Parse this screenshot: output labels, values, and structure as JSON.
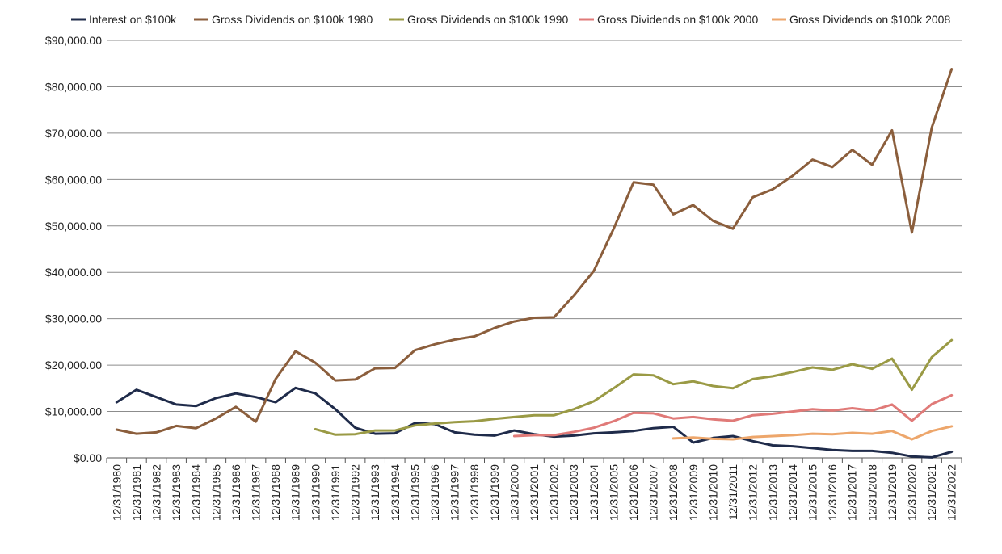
{
  "chart_data": {
    "type": "line",
    "title": "",
    "xlabel": "",
    "ylabel": "",
    "ylim": [
      0,
      90000
    ],
    "y_ticks": [
      "$0.00",
      "$10,000.00",
      "$20,000.00",
      "$30,000.00",
      "$40,000.00",
      "$50,000.00",
      "$60,000.00",
      "$70,000.00",
      "$80,000.00",
      "$90,000.00"
    ],
    "grid": "horizontal",
    "legend_position": "top",
    "categories": [
      "12/31/1980",
      "12/31/1981",
      "12/31/1982",
      "12/31/1983",
      "12/31/1984",
      "12/31/1985",
      "12/31/1986",
      "12/31/1987",
      "12/31/1988",
      "12/31/1989",
      "12/31/1990",
      "12/31/1991",
      "12/31/1992",
      "12/31/1993",
      "12/31/1994",
      "12/31/1995",
      "12/31/1996",
      "12/31/1997",
      "12/31/1998",
      "12/31/1999",
      "12/31/2000",
      "12/31/2001",
      "12/31/2002",
      "12/31/2003",
      "12/31/2004",
      "12/31/2005",
      "12/31/2006",
      "12/31/2007",
      "12/31/2008",
      "12/31/2009",
      "12/31/2010",
      "12/31/2011",
      "12/31/2012",
      "12/31/2013",
      "12/31/2014",
      "12/31/2015",
      "12/31/2016",
      "12/31/2017",
      "12/31/2018",
      "12/31/2019",
      "12/31/2020",
      "12/31/2021",
      "12/31/2022"
    ],
    "series": [
      {
        "name": "Interest on $100k",
        "color": "#1f2b4a",
        "values": [
          12000,
          14700,
          13100,
          11500,
          11200,
          12900,
          13900,
          13100,
          12000,
          15100,
          13900,
          10500,
          6500,
          5200,
          5300,
          7500,
          7300,
          5500,
          5000,
          4800,
          5900,
          5100,
          4600,
          4800,
          5300,
          5500,
          5800,
          6400,
          6700,
          3300,
          4300,
          4700,
          3600,
          2700,
          2500,
          2100,
          1700,
          1500,
          1500,
          1100,
          300,
          100,
          1300
        ]
      },
      {
        "name": "Gross Dividends on $100k 1980",
        "color": "#8b5e3c",
        "values": [
          6100,
          5200,
          5500,
          6900,
          6400,
          8500,
          11000,
          7800,
          17000,
          23000,
          20500,
          16700,
          16900,
          19300,
          19400,
          23200,
          24500,
          25500,
          26200,
          28000,
          29400,
          30200,
          30300,
          35000,
          40300,
          49400,
          59400,
          58900,
          52500,
          54500,
          51100,
          49400,
          56200,
          57900,
          60800,
          64300,
          62700,
          66400,
          63200,
          70600,
          48600,
          71200,
          83800
        ]
      },
      {
        "name": "Gross Dividends on $100k 1990",
        "color": "#9a9a45",
        "values": [
          null,
          null,
          null,
          null,
          null,
          null,
          null,
          null,
          null,
          null,
          6200,
          5000,
          5100,
          5900,
          5900,
          7000,
          7400,
          7700,
          7900,
          8400,
          8800,
          9200,
          9200,
          10500,
          12200,
          15000,
          18000,
          17800,
          15900,
          16500,
          15500,
          15000,
          17000,
          17600,
          18500,
          19500,
          19000,
          20200,
          19200,
          21400,
          14700,
          21700,
          25400
        ]
      },
      {
        "name": "Gross Dividends on $100k 2000",
        "color": "#e07a78",
        "values": [
          null,
          null,
          null,
          null,
          null,
          null,
          null,
          null,
          null,
          null,
          null,
          null,
          null,
          null,
          null,
          null,
          null,
          null,
          null,
          null,
          4700,
          4900,
          4900,
          5600,
          6500,
          7900,
          9700,
          9600,
          8500,
          8800,
          8300,
          8000,
          9200,
          9500,
          10000,
          10500,
          10200,
          10700,
          10200,
          11500,
          8000,
          11600,
          13500
        ]
      },
      {
        "name": "Gross Dividends on $100k 2008",
        "color": "#eda66b",
        "values": [
          null,
          null,
          null,
          null,
          null,
          null,
          null,
          null,
          null,
          null,
          null,
          null,
          null,
          null,
          null,
          null,
          null,
          null,
          null,
          null,
          null,
          null,
          null,
          null,
          null,
          null,
          null,
          null,
          4200,
          4400,
          4100,
          4000,
          4500,
          4700,
          4900,
          5200,
          5100,
          5400,
          5200,
          5800,
          4000,
          5800,
          6800
        ]
      }
    ]
  }
}
